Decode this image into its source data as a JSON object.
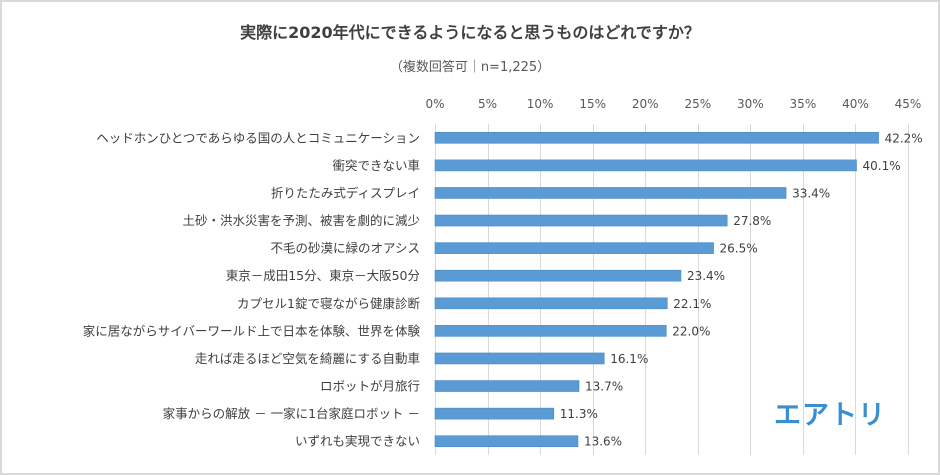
{
  "chart_data": {
    "type": "bar",
    "orientation": "horizontal",
    "title": "実際に2020年代にできるようになると思うものはどれですか？",
    "subtitle": "（複数回答可｜n=1,225）",
    "xlabel": "",
    "ylabel": "",
    "xlim": [
      0,
      45
    ],
    "ticks": [
      0,
      5,
      10,
      15,
      20,
      25,
      30,
      35,
      40,
      45
    ],
    "tick_labels": [
      "0%",
      "5%",
      "10%",
      "15%",
      "20%",
      "25%",
      "30%",
      "35%",
      "40%",
      "45%"
    ],
    "grid": true,
    "categories": [
      "ヘッドホンひとつであらゆる国の人とコミュニケーション",
      "衝突できない車",
      "折りたたみ式ディスプレイ",
      "土砂・洪水災害を予測、被害を劇的に減少",
      "不毛の砂漠に緑のオアシス",
      "東京－成田15分、東京－大阪50分",
      "カプセル1錠で寝ながら健康診断",
      "家に居ながらサイバーワールド上で日本を体験、世界を体験",
      "走れば走るほど空気を綺麗にする自動車",
      "ロボットが月旅行",
      "家事からの解放 － 一家に1台家庭ロボット －",
      "いずれも実現できない"
    ],
    "values": [
      42.2,
      40.1,
      33.4,
      27.8,
      26.5,
      23.4,
      22.1,
      22.0,
      16.1,
      13.7,
      11.3,
      13.6
    ],
    "data_labels": [
      "42.2%",
      "40.1%",
      "33.4%",
      "27.8%",
      "26.5%",
      "23.4%",
      "22.1%",
      "22.0%",
      "16.1%",
      "13.7%",
      "11.3%",
      "13.6%"
    ],
    "bar_color": "#5b9bd5",
    "legend": "none"
  },
  "logo_text": "エアトリ",
  "colors": {
    "grid": "#d9d9d9",
    "logo": "#3a8fd0"
  }
}
